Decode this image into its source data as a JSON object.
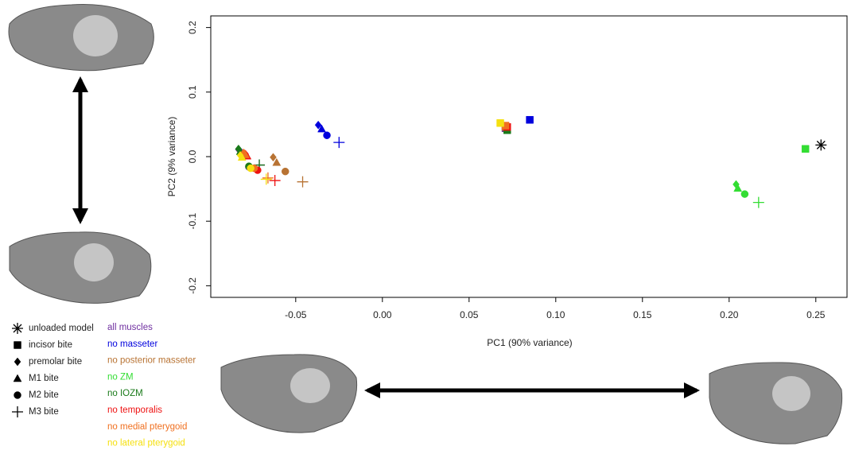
{
  "chart_data": {
    "type": "scatter",
    "xlabel": "PC1 (90% variance)",
    "ylabel": "PC2 (9% variance)",
    "xlim": [
      -0.099,
      0.268
    ],
    "ylim": [
      -0.218,
      0.218
    ],
    "xticks": [
      -0.05,
      {
        "value": 0,
        "label": "0.00"
      },
      0.05,
      {
        "value": 0.1,
        "label": "0.10"
      },
      0.15,
      {
        "value": 0.2,
        "label": "0.20"
      },
      0.25
    ],
    "yticks": [
      -0.2,
      -0.1,
      {
        "value": 0,
        "label": "0.0"
      },
      0.1,
      0.2
    ],
    "unloaded": {
      "name": "unloaded model",
      "color": "#000000",
      "x": 0.253,
      "y": 0.018
    },
    "bites": [
      "incisor bite",
      "premolar bite",
      "M1 bite",
      "M2 bite",
      "M3 bite"
    ],
    "series": [
      {
        "name": "all muscles",
        "color": "#7030a0",
        "x": [
          0.071,
          -0.083,
          -0.081,
          -0.077,
          -0.071
        ],
        "y": [
          0.044,
          0.011,
          0.006,
          -0.016,
          -0.013
        ]
      },
      {
        "name": "no masseter",
        "color": "#0000dd",
        "x": [
          0.085,
          -0.037,
          -0.035,
          -0.032,
          -0.025
        ],
        "y": [
          0.057,
          0.049,
          0.043,
          0.033,
          0.022
        ]
      },
      {
        "name": "no posterior masseter",
        "color": "#b87333",
        "x": [
          0.071,
          -0.063,
          -0.061,
          -0.056,
          -0.046
        ],
        "y": [
          0.046,
          -0.001,
          -0.009,
          -0.023,
          -0.039
        ]
      },
      {
        "name": "no ZM",
        "color": "#33dd33",
        "x": [
          0.244,
          0.204,
          0.205,
          0.209,
          0.217
        ],
        "y": [
          0.012,
          -0.043,
          -0.049,
          -0.058,
          -0.071
        ]
      },
      {
        "name": "no IOZM",
        "color": "#1a7a1a",
        "x": [
          0.072,
          -0.083,
          -0.082,
          -0.077,
          -0.071
        ],
        "y": [
          0.041,
          0.012,
          0.008,
          -0.015,
          -0.013
        ]
      },
      {
        "name": "no temporalis",
        "color": "#ee1111",
        "x": [
          0.072,
          -0.079,
          -0.078,
          -0.072,
          -0.062
        ],
        "y": [
          0.046,
          0.004,
          0.001,
          -0.021,
          -0.037
        ]
      },
      {
        "name": "no medial pterygoid",
        "color": "#f07020",
        "x": [
          0.071,
          -0.08,
          -0.079,
          -0.074,
          -0.066
        ],
        "y": [
          0.048,
          0.006,
          0.003,
          -0.018,
          -0.033
        ]
      },
      {
        "name": "no lateral pterygoid",
        "color": "#f5e010",
        "x": [
          0.068,
          -0.082,
          -0.081,
          -0.076,
          -0.067
        ],
        "y": [
          0.052,
          0.002,
          -0.001,
          -0.018,
          -0.035
        ]
      }
    ]
  }
}
